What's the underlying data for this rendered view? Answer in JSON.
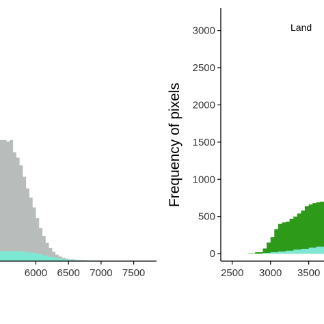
{
  "chart_data": [
    {
      "type": "area",
      "panel": "left",
      "title": "",
      "xlabel": "",
      "ylabel": "",
      "x_ticks": [
        6000,
        6500,
        7000,
        7500
      ],
      "xlim": [
        5450,
        7850
      ],
      "ylim": [
        0,
        3300
      ],
      "grid": false,
      "series": [
        {
          "color": "#b8bcbb",
          "x": [
            5450,
            5550,
            5600,
            5650,
            5700,
            5750,
            5800,
            5850,
            5900,
            5950,
            6000,
            6050,
            6100,
            6150,
            6200,
            6250,
            6300,
            6350,
            6400,
            6450,
            6500,
            6600,
            6700,
            6800,
            7000,
            7200,
            7500
          ],
          "values": [
            1580,
            1560,
            1580,
            1420,
            1350,
            1250,
            1100,
            950,
            830,
            700,
            560,
            430,
            330,
            240,
            170,
            120,
            85,
            60,
            42,
            30,
            22,
            15,
            10,
            7,
            4,
            2,
            1
          ]
        },
        {
          "color": "#7fe8d2",
          "x": [
            5450,
            5800,
            5900,
            6000,
            6100,
            6200,
            6300,
            6400,
            6500,
            6700,
            7000,
            7500
          ],
          "values": [
            130,
            120,
            110,
            95,
            75,
            55,
            38,
            25,
            15,
            6,
            2,
            0
          ]
        }
      ]
    },
    {
      "type": "area",
      "panel": "right",
      "title": "",
      "annotation": "Land",
      "xlabel": "",
      "ylabel": "Frequency of pixels",
      "x_ticks": [
        2500,
        3000,
        3500
      ],
      "y_ticks": [
        0,
        500,
        1000,
        1500,
        2000,
        2500,
        3000
      ],
      "xlim": [
        2350,
        3700
      ],
      "ylim": [
        -100,
        3300
      ],
      "grid": false,
      "series": [
        {
          "color": "#2e9a1a",
          "x": [
            2600,
            2700,
            2800,
            2900,
            2950,
            3000,
            3050,
            3100,
            3150,
            3200,
            3250,
            3300,
            3350,
            3400,
            3450,
            3500,
            3550,
            3600,
            3650,
            3700
          ],
          "values": [
            0,
            5,
            20,
            70,
            150,
            220,
            330,
            400,
            420,
            430,
            470,
            500,
            540,
            580,
            640,
            660,
            680,
            690,
            700,
            710
          ]
        },
        {
          "color": "#7fe8d2",
          "x": [
            2600,
            2900,
            3000,
            3100,
            3200,
            3300,
            3400,
            3500,
            3600,
            3700
          ],
          "values": [
            0,
            10,
            20,
            30,
            40,
            55,
            65,
            80,
            95,
            110
          ]
        }
      ]
    }
  ]
}
